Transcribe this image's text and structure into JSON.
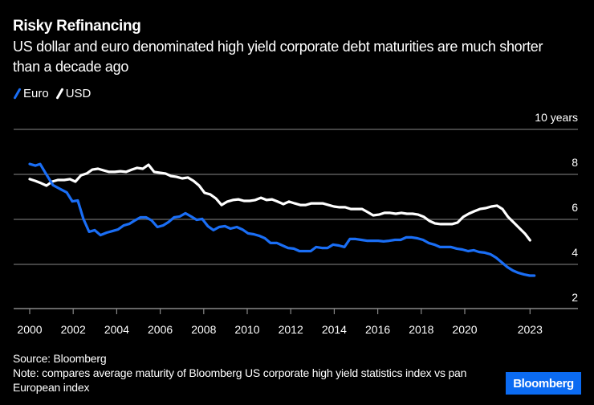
{
  "header": {
    "title": "Risky Refinancing",
    "subtitle": "US dollar and euro denominated high yield corporate debt maturities are much shorter than a decade ago"
  },
  "legend": [
    {
      "label": "Euro",
      "color": "#1a6ef5"
    },
    {
      "label": "USD",
      "color": "#ffffff"
    }
  ],
  "footer": {
    "source": "Source: Bloomberg",
    "note": "Note: compares average maturity of Bloomberg US corporate high yield statistics index vs pan European index",
    "logo": "Bloomberg",
    "logo_color": "#0b6bf2"
  },
  "chart_data": {
    "type": "line",
    "title": "Risky Refinancing",
    "xlabel": "",
    "ylabel": "years",
    "y_unit_label": "10 years",
    "ylim": [
      2,
      10
    ],
    "xlim": [
      2000,
      2023.2
    ],
    "y_ticks": [
      2,
      4,
      6,
      8,
      10
    ],
    "y_tick_labels": [
      "2",
      "4",
      "6",
      "8",
      "10 years"
    ],
    "x_ticks": [
      2000,
      2002,
      2004,
      2006,
      2008,
      2010,
      2012,
      2014,
      2016,
      2018,
      2020,
      2023
    ],
    "x_tick_labels": [
      "2000",
      "2002",
      "2004",
      "2006",
      "2008",
      "2010",
      "2012",
      "2014",
      "2016",
      "2018",
      "2020",
      "2023"
    ],
    "grid": true,
    "legend_position": "top-left",
    "series": [
      {
        "name": "Euro",
        "color": "#1a6ef5",
        "points": [
          [
            2000.0,
            8.46
          ],
          [
            2000.26,
            8.39
          ],
          [
            2000.48,
            8.46
          ],
          [
            2000.77,
            7.99
          ],
          [
            2001.07,
            7.52
          ],
          [
            2001.4,
            7.35
          ],
          [
            2001.7,
            7.2
          ],
          [
            2001.96,
            6.8
          ],
          [
            2002.21,
            6.84
          ],
          [
            2002.47,
            6.02
          ],
          [
            2002.73,
            5.45
          ],
          [
            2002.99,
            5.52
          ],
          [
            2003.25,
            5.3
          ],
          [
            2003.54,
            5.41
          ],
          [
            2003.8,
            5.48
          ],
          [
            2004.06,
            5.55
          ],
          [
            2004.32,
            5.73
          ],
          [
            2004.58,
            5.8
          ],
          [
            2004.83,
            5.95
          ],
          [
            2005.09,
            6.09
          ],
          [
            2005.35,
            6.09
          ],
          [
            2005.61,
            5.95
          ],
          [
            2005.87,
            5.66
          ],
          [
            2006.13,
            5.73
          ],
          [
            2006.38,
            5.88
          ],
          [
            2006.64,
            6.09
          ],
          [
            2006.9,
            6.13
          ],
          [
            2007.16,
            6.27
          ],
          [
            2007.42,
            6.13
          ],
          [
            2007.68,
            5.98
          ],
          [
            2007.93,
            6.02
          ],
          [
            2008.19,
            5.7
          ],
          [
            2008.45,
            5.52
          ],
          [
            2008.71,
            5.66
          ],
          [
            2008.97,
            5.7
          ],
          [
            2009.23,
            5.59
          ],
          [
            2009.52,
            5.66
          ],
          [
            2009.78,
            5.55
          ],
          [
            2010.04,
            5.38
          ],
          [
            2010.3,
            5.34
          ],
          [
            2010.55,
            5.27
          ],
          [
            2010.81,
            5.16
          ],
          [
            2011.07,
            4.95
          ],
          [
            2011.37,
            4.95
          ],
          [
            2011.62,
            4.84
          ],
          [
            2011.88,
            4.73
          ],
          [
            2012.14,
            4.7
          ],
          [
            2012.4,
            4.59
          ],
          [
            2012.66,
            4.59
          ],
          [
            2012.92,
            4.59
          ],
          [
            2013.17,
            4.77
          ],
          [
            2013.43,
            4.73
          ],
          [
            2013.69,
            4.73
          ],
          [
            2013.95,
            4.88
          ],
          [
            2014.21,
            4.84
          ],
          [
            2014.47,
            4.77
          ],
          [
            2014.72,
            5.13
          ],
          [
            2014.98,
            5.13
          ],
          [
            2015.24,
            5.09
          ],
          [
            2015.5,
            5.05
          ],
          [
            2015.76,
            5.05
          ],
          [
            2016.02,
            5.05
          ],
          [
            2016.27,
            5.02
          ],
          [
            2016.53,
            5.05
          ],
          [
            2016.79,
            5.09
          ],
          [
            2017.05,
            5.09
          ],
          [
            2017.31,
            5.2
          ],
          [
            2017.57,
            5.2
          ],
          [
            2017.82,
            5.16
          ],
          [
            2018.08,
            5.09
          ],
          [
            2018.34,
            4.95
          ],
          [
            2018.6,
            4.88
          ],
          [
            2018.86,
            4.77
          ],
          [
            2019.11,
            4.77
          ],
          [
            2019.37,
            4.77
          ],
          [
            2019.63,
            4.7
          ],
          [
            2019.89,
            4.66
          ],
          [
            2020.15,
            4.59
          ],
          [
            2020.41,
            4.63
          ],
          [
            2020.66,
            4.55
          ],
          [
            2020.92,
            4.52
          ],
          [
            2021.18,
            4.45
          ],
          [
            2021.44,
            4.3
          ],
          [
            2021.7,
            4.09
          ],
          [
            2021.96,
            3.88
          ],
          [
            2022.21,
            3.73
          ],
          [
            2022.47,
            3.62
          ],
          [
            2022.73,
            3.55
          ],
          [
            2022.99,
            3.5
          ],
          [
            2023.2,
            3.5
          ]
        ]
      },
      {
        "name": "USD",
        "color": "#ffffff",
        "points": [
          [
            2000.0,
            7.79
          ],
          [
            2000.26,
            7.71
          ],
          [
            2000.52,
            7.61
          ],
          [
            2000.77,
            7.5
          ],
          [
            2001.03,
            7.68
          ],
          [
            2001.29,
            7.75
          ],
          [
            2001.59,
            7.75
          ],
          [
            2001.85,
            7.79
          ],
          [
            2002.1,
            7.68
          ],
          [
            2002.36,
            7.96
          ],
          [
            2002.62,
            8.04
          ],
          [
            2002.88,
            8.21
          ],
          [
            2003.14,
            8.25
          ],
          [
            2003.39,
            8.18
          ],
          [
            2003.65,
            8.11
          ],
          [
            2003.91,
            8.11
          ],
          [
            2004.17,
            8.14
          ],
          [
            2004.43,
            8.11
          ],
          [
            2004.69,
            8.21
          ],
          [
            2004.94,
            8.29
          ],
          [
            2005.2,
            8.25
          ],
          [
            2005.46,
            8.43
          ],
          [
            2005.72,
            8.11
          ],
          [
            2005.98,
            8.07
          ],
          [
            2006.24,
            8.04
          ],
          [
            2006.49,
            7.93
          ],
          [
            2006.75,
            7.89
          ],
          [
            2007.01,
            7.82
          ],
          [
            2007.27,
            7.86
          ],
          [
            2007.53,
            7.71
          ],
          [
            2007.79,
            7.5
          ],
          [
            2008.04,
            7.18
          ],
          [
            2008.3,
            7.11
          ],
          [
            2008.56,
            6.93
          ],
          [
            2008.82,
            6.64
          ],
          [
            2009.08,
            6.79
          ],
          [
            2009.34,
            6.86
          ],
          [
            2009.59,
            6.89
          ],
          [
            2009.85,
            6.82
          ],
          [
            2010.11,
            6.82
          ],
          [
            2010.37,
            6.86
          ],
          [
            2010.63,
            6.96
          ],
          [
            2010.89,
            6.86
          ],
          [
            2011.14,
            6.89
          ],
          [
            2011.4,
            6.79
          ],
          [
            2011.66,
            6.68
          ],
          [
            2011.92,
            6.79
          ],
          [
            2012.18,
            6.71
          ],
          [
            2012.44,
            6.64
          ],
          [
            2012.69,
            6.64
          ],
          [
            2012.95,
            6.71
          ],
          [
            2013.21,
            6.71
          ],
          [
            2013.47,
            6.71
          ],
          [
            2013.73,
            6.64
          ],
          [
            2013.99,
            6.57
          ],
          [
            2014.24,
            6.54
          ],
          [
            2014.5,
            6.54
          ],
          [
            2014.76,
            6.46
          ],
          [
            2015.02,
            6.46
          ],
          [
            2015.28,
            6.46
          ],
          [
            2015.54,
            6.32
          ],
          [
            2015.79,
            6.18
          ],
          [
            2016.05,
            6.21
          ],
          [
            2016.31,
            6.29
          ],
          [
            2016.57,
            6.29
          ],
          [
            2016.83,
            6.25
          ],
          [
            2017.09,
            6.29
          ],
          [
            2017.34,
            6.25
          ],
          [
            2017.6,
            6.25
          ],
          [
            2017.86,
            6.21
          ],
          [
            2018.12,
            6.11
          ],
          [
            2018.38,
            5.93
          ],
          [
            2018.63,
            5.82
          ],
          [
            2018.89,
            5.79
          ],
          [
            2019.15,
            5.79
          ],
          [
            2019.41,
            5.79
          ],
          [
            2019.67,
            5.86
          ],
          [
            2019.93,
            6.11
          ],
          [
            2020.18,
            6.25
          ],
          [
            2020.44,
            6.36
          ],
          [
            2020.7,
            6.46
          ],
          [
            2020.96,
            6.5
          ],
          [
            2021.22,
            6.57
          ],
          [
            2021.48,
            6.61
          ],
          [
            2021.73,
            6.46
          ],
          [
            2021.99,
            6.11
          ],
          [
            2022.25,
            5.86
          ],
          [
            2022.51,
            5.61
          ],
          [
            2022.77,
            5.36
          ],
          [
            2023.0,
            5.07
          ]
        ]
      }
    ]
  }
}
